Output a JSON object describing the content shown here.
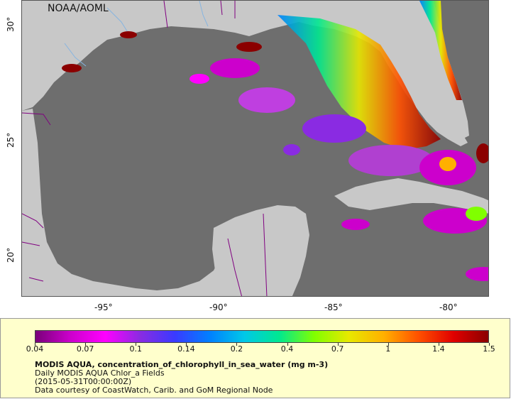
{
  "credit": "NOAA/AOML",
  "latitude_labels": [
    {
      "text": "30°",
      "lat": 30
    },
    {
      "text": "25°",
      "lat": 25
    },
    {
      "text": "20°",
      "lat": 20
    }
  ],
  "longitude_labels": [
    {
      "text": "-95°",
      "lon": -95
    },
    {
      "text": "-90°",
      "lon": -90
    },
    {
      "text": "-85°",
      "lon": -85
    },
    {
      "text": "-80°",
      "lon": -80
    }
  ],
  "colorbar": {
    "ticks": [
      "0.04",
      "0.07",
      "0.1",
      "0.14",
      "0.2",
      "0.4",
      "0.7",
      "1",
      "1.4",
      "1.5"
    ],
    "colors": [
      "#7a007a",
      "#cc00cc",
      "#ff00ff",
      "#8a2be2",
      "#3a3aff",
      "#0080ff",
      "#00c8e8",
      "#00e890",
      "#80ff00",
      "#e8e800",
      "#ffb000",
      "#ff5000",
      "#e00000",
      "#8b0000"
    ]
  },
  "info": {
    "title": "MODIS AQUA, concentration_of_chlorophyll_in_sea_water (mg m-3)",
    "line2": "Daily MODIS AQUA Chlor_a Fields",
    "line3": "(2015-05-31T00:00:00Z)",
    "line4": "Data courtesy of CoastWatch, Carib. and GoM Regional Node"
  },
  "colors": {
    "ocean": "#6e6e6e",
    "land": "#c8c8c8",
    "legend_background": "#ffffcc",
    "border": "#800080",
    "river": "#87b5e0"
  }
}
